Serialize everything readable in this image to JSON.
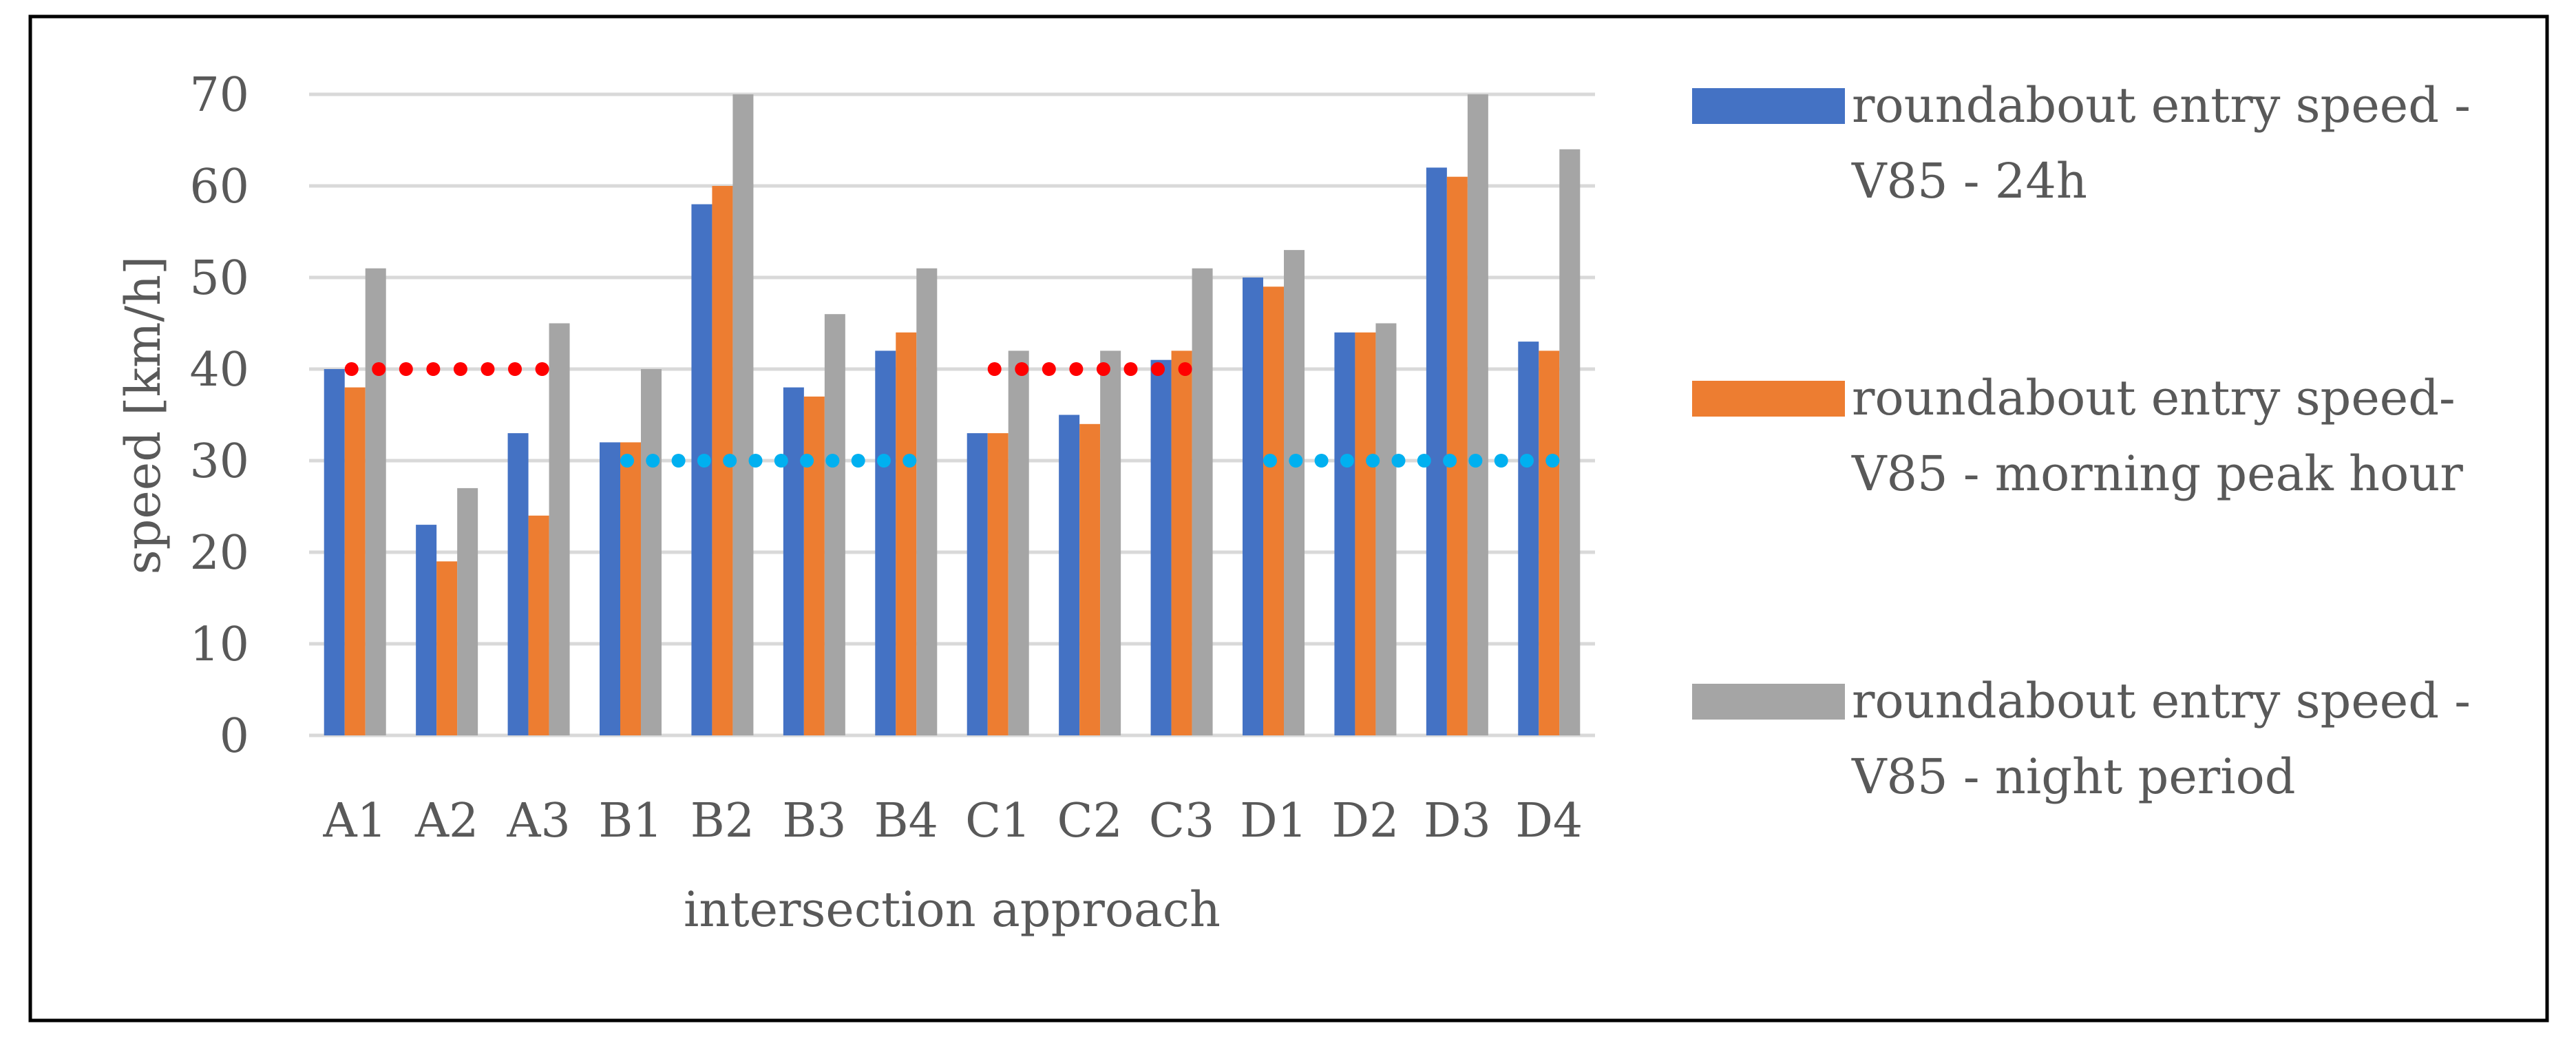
{
  "chart_data": {
    "type": "bar",
    "title": "",
    "xlabel": "intersection approach",
    "ylabel": "speed [km/h]",
    "ylim": [
      0,
      70
    ],
    "yticks": [
      0,
      10,
      20,
      30,
      40,
      50,
      60,
      70
    ],
    "grid": true,
    "legend_position": "right",
    "categories": [
      "A1",
      "A2",
      "A3",
      "B1",
      "B2",
      "B3",
      "B4",
      "C1",
      "C2",
      "C3",
      "D1",
      "D2",
      "D3",
      "D4"
    ],
    "series": [
      {
        "name": "roundabout entry speed - V85 - 24h",
        "legend_lines": [
          "roundabout entry speed -",
          "V85 - 24h"
        ],
        "color": "#4472C4",
        "values": [
          40,
          23,
          33,
          32,
          58,
          38,
          42,
          33,
          35,
          41,
          50,
          44,
          62,
          43
        ]
      },
      {
        "name": "roundabout entry speed- V85 - morning peak hour",
        "legend_lines": [
          "roundabout entry speed-",
          "V85 - morning peak hour"
        ],
        "color": "#ED7D31",
        "values": [
          38,
          19,
          24,
          32,
          60,
          37,
          44,
          33,
          34,
          42,
          49,
          44,
          61,
          42
        ]
      },
      {
        "name": "roundabout entry speed - V85 - night period",
        "legend_lines": [
          "roundabout entry speed -",
          "V85 - night period"
        ],
        "color": "#A5A5A5",
        "values": [
          51,
          27,
          45,
          40,
          70,
          46,
          51,
          42,
          42,
          51,
          53,
          45,
          70,
          64
        ]
      }
    ],
    "reference_lines": [
      {
        "value": 40,
        "from": "A1",
        "to": "A3",
        "color": "#FF0000",
        "style": "dotted"
      },
      {
        "value": 30,
        "from": "B1",
        "to": "B4",
        "color": "#00B0F0",
        "style": "dotted"
      },
      {
        "value": 40,
        "from": "C1",
        "to": "C3",
        "color": "#FF0000",
        "style": "dotted"
      },
      {
        "value": 30,
        "from": "D1",
        "to": "D4",
        "color": "#00B0F0",
        "style": "dotted"
      }
    ]
  }
}
